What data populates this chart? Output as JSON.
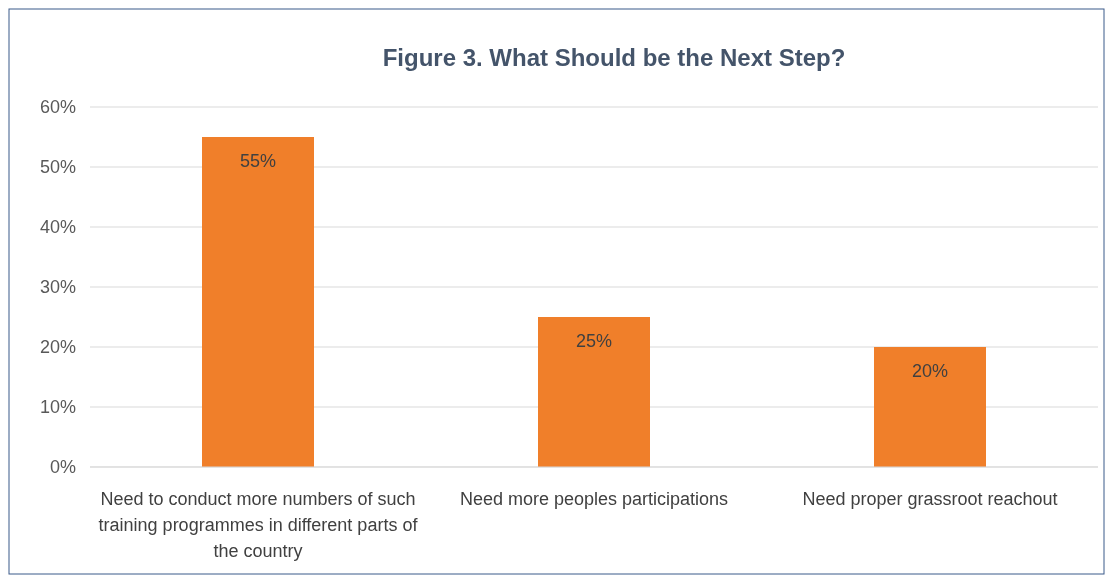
{
  "chart_data": {
    "type": "bar",
    "title": "Figure 3. What Should be the Next Step?",
    "categories": [
      "Need to conduct more numbers of such training programmes in different parts of the country",
      "Need more peoples participations",
      "Need proper grassroot reachout"
    ],
    "values": [
      55,
      25,
      20
    ],
    "color": "#f07f2a",
    "value_labels": [
      "55%",
      "25%",
      "20%"
    ],
    "ylim": [
      0,
      60
    ],
    "yticks": [
      {
        "value": 0,
        "label": "0%"
      },
      {
        "value": 10,
        "label": "10%"
      },
      {
        "value": 20,
        "label": "20%"
      },
      {
        "value": 30,
        "label": "30%"
      },
      {
        "value": 40,
        "label": "40%"
      },
      {
        "value": 50,
        "label": "50%"
      },
      {
        "value": 60,
        "label": "60%"
      }
    ],
    "grid": "y"
  }
}
